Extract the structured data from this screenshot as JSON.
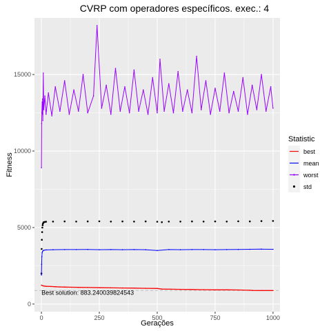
{
  "chart_data": {
    "type": "line",
    "title": "CVRP com operadores específicos. exec.: 4",
    "xlabel": "Gerações",
    "ylabel": "Fitness",
    "xlim": [
      -30,
      1030
    ],
    "ylim": [
      -500,
      18700
    ],
    "x_ticks": [
      0,
      250,
      500,
      750,
      1000
    ],
    "y_ticks": [
      0,
      5000,
      10000,
      15000
    ],
    "grid": true,
    "legend": {
      "title": "Statistic",
      "placement": "right",
      "entries": [
        "best",
        "mean",
        "worst",
        "std"
      ]
    },
    "colors": {
      "best": "#ff0000",
      "mean": "#0000ff",
      "worst": "#9900ff",
      "std": "#000000",
      "hline": "#bfbfbf",
      "panel": "#ebebeb"
    },
    "series": [
      {
        "name": "best",
        "x": [
          0,
          5,
          10,
          20,
          40,
          60,
          80,
          100,
          130,
          160,
          200,
          250,
          300,
          350,
          400,
          450,
          500,
          520,
          560,
          600,
          650,
          700,
          750,
          800,
          850,
          900,
          910,
          950,
          1000
        ],
        "y": [
          1230,
          1200,
          1180,
          1160,
          1150,
          1130,
          1120,
          1110,
          1100,
          1090,
          1080,
          1070,
          1060,
          1050,
          1040,
          1030,
          1020,
          980,
          970,
          960,
          950,
          940,
          930,
          930,
          920,
          900,
          890,
          885,
          883
        ]
      },
      {
        "name": "mean",
        "x": [
          0,
          1,
          2,
          3,
          5,
          8,
          12,
          20,
          50,
          100,
          150,
          200,
          250,
          300,
          350,
          400,
          450,
          500,
          550,
          600,
          650,
          700,
          750,
          800,
          850,
          900,
          950,
          1000
        ],
        "y": [
          1900,
          2600,
          3100,
          3350,
          3450,
          3500,
          3520,
          3540,
          3550,
          3560,
          3560,
          3570,
          3550,
          3560,
          3550,
          3560,
          3550,
          3500,
          3560,
          3550,
          3560,
          3560,
          3550,
          3560,
          3570,
          3580,
          3590,
          3580
        ]
      },
      {
        "name": "worst",
        "x": [
          0,
          1,
          2,
          3,
          4,
          5,
          6,
          8,
          10,
          15,
          20,
          30,
          45,
          60,
          80,
          100,
          120,
          140,
          160,
          180,
          200,
          225,
          240,
          260,
          280,
          300,
          320,
          340,
          360,
          380,
          400,
          420,
          440,
          460,
          480,
          500,
          512,
          530,
          550,
          570,
          590,
          610,
          630,
          650,
          670,
          690,
          710,
          730,
          750,
          770,
          790,
          810,
          830,
          850,
          870,
          890,
          910,
          930,
          950,
          970,
          990,
          1000
        ],
        "y": [
          8900,
          11800,
          12500,
          13200,
          12400,
          13400,
          12000,
          15100,
          12700,
          13600,
          12400,
          13800,
          12300,
          14200,
          12600,
          14600,
          12400,
          14000,
          12600,
          15000,
          12500,
          13600,
          18200,
          12800,
          14300,
          12400,
          15400,
          12600,
          14200,
          12500,
          15300,
          12600,
          14000,
          12400,
          14800,
          12500,
          16000,
          12600,
          14400,
          12500,
          15200,
          12600,
          14000,
          12500,
          16200,
          12700,
          14600,
          12400,
          14100,
          12600,
          15100,
          12500,
          13900,
          12600,
          14800,
          12400,
          14300,
          12700,
          15000,
          12600,
          14200,
          12800
        ]
      },
      {
        "name": "std",
        "x": [
          0,
          1,
          2,
          3,
          4,
          5,
          6,
          8,
          10,
          15,
          20,
          50,
          100,
          150,
          200,
          250,
          300,
          350,
          400,
          450,
          500,
          520,
          550,
          600,
          650,
          700,
          750,
          800,
          850,
          900,
          950,
          1000
        ],
        "y": [
          2000,
          3600,
          4200,
          4700,
          5000,
          5150,
          5250,
          5300,
          5350,
          5370,
          5380,
          5390,
          5400,
          5390,
          5400,
          5410,
          5390,
          5400,
          5390,
          5400,
          5380,
          5350,
          5390,
          5390,
          5400,
          5390,
          5400,
          5390,
          5410,
          5400,
          5420,
          5430
        ]
      }
    ],
    "hline": {
      "y": 883.240039824543
    },
    "annotation": {
      "text": "Best solution: 883.240039824543",
      "x": 0,
      "y": 600
    }
  }
}
